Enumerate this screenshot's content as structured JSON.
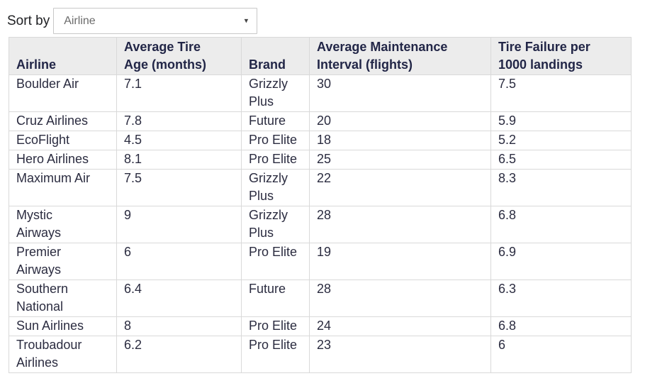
{
  "sort_by": {
    "label": "Sort by",
    "selected_option": "Airline"
  },
  "icons": {
    "dropdown_arrow": "▾"
  },
  "table": {
    "columns": [
      {
        "key": "airline",
        "label": "Airline"
      },
      {
        "key": "tire-age",
        "label": "Average Tire Age (months)"
      },
      {
        "key": "brand",
        "label": "Brand"
      },
      {
        "key": "maintenance-interval",
        "label": "Average Maintenance Interval (flights)"
      },
      {
        "key": "tire-failure",
        "label": "Tire Failure per 1000 landings"
      }
    ],
    "rows": [
      [
        "Boulder Air",
        "7.1",
        "Grizzly Plus",
        "30",
        "7.5"
      ],
      [
        "Cruz Airlines",
        "7.8",
        "Future",
        "20",
        "5.9"
      ],
      [
        "EcoFlight",
        "4.5",
        "Pro Elite",
        "18",
        "5.2"
      ],
      [
        "Hero Airlines",
        "8.1",
        "Pro Elite",
        "25",
        "6.5"
      ],
      [
        "Maximum Air",
        "7.5",
        "Grizzly Plus",
        "22",
        "8.3"
      ],
      [
        "Mystic Airways",
        "9",
        "Grizzly Plus",
        "28",
        "6.8"
      ],
      [
        "Premier Airways",
        "6",
        "Pro Elite",
        "19",
        "6.9"
      ],
      [
        "Southern National",
        "6.4",
        "Future",
        "28",
        "6.3"
      ],
      [
        "Sun Airlines",
        "8",
        "Pro Elite",
        "24",
        "6.8"
      ],
      [
        "Troubadour Airlines",
        "6.2",
        "Pro Elite",
        "23",
        "6"
      ]
    ]
  },
  "colors": {
    "header_bg": "#ececec",
    "table_border": "#d9d9d9",
    "header_text": "#222647",
    "body_text": "#2b2c40",
    "label_text": "#202124",
    "select_text": "#6b6b6b",
    "select_border": "#c8c8c8",
    "arrow_color": "#444444"
  }
}
